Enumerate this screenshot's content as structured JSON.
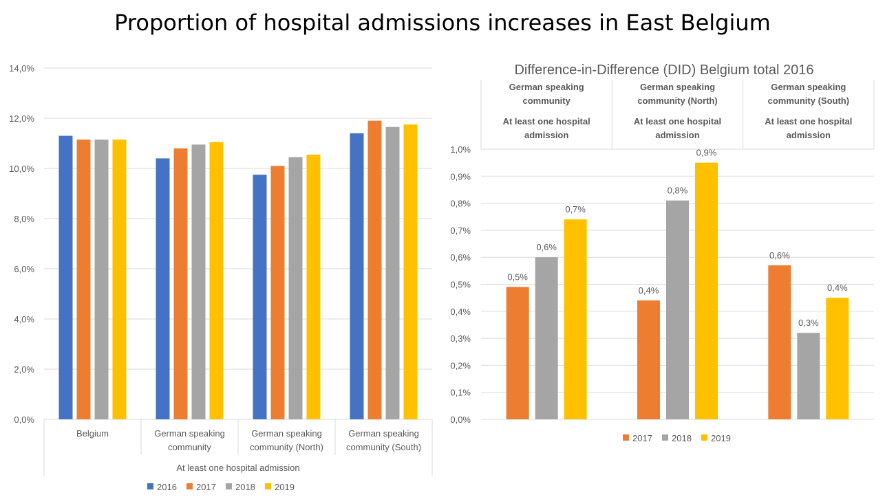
{
  "slide": {
    "title": "Proportion of hospital admissions increases in East Belgium"
  },
  "colors": {
    "2016": "#4472C4",
    "2017": "#ED7D31",
    "2018": "#A5A5A5",
    "2019": "#FFC000",
    "gridline": "#D9D9D9",
    "axis_text": "#595959"
  },
  "chart_data": [
    {
      "type": "bar",
      "title": "",
      "ylim": [
        0,
        14
      ],
      "yticks": [
        "0,0%",
        "2,0%",
        "4,0%",
        "6,0%",
        "8,0%",
        "10,0%",
        "12,0%",
        "14,0%"
      ],
      "categories": [
        [
          "Belgium"
        ],
        [
          "German speaking",
          "community"
        ],
        [
          "German speaking",
          "community (North)"
        ],
        [
          "German speaking",
          "community (South)"
        ]
      ],
      "group_label": "At least one hospital admission",
      "grid": true,
      "legend_position": "bottom",
      "series": [
        {
          "name": "2016",
          "values": [
            11.3,
            10.4,
            9.75,
            11.4
          ]
        },
        {
          "name": "2017",
          "values": [
            11.15,
            10.8,
            10.1,
            11.9
          ]
        },
        {
          "name": "2018",
          "values": [
            11.15,
            10.95,
            10.45,
            11.65
          ]
        },
        {
          "name": "2019",
          "values": [
            11.15,
            11.05,
            10.55,
            11.75
          ]
        }
      ]
    },
    {
      "type": "bar",
      "title": "Difference-in-Difference (DID) Belgium total 2016",
      "ylim": [
        0,
        1
      ],
      "yticks": [
        "0,0%",
        "0,1%",
        "0,2%",
        "0,3%",
        "0,4%",
        "0,5%",
        "0,6%",
        "0,7%",
        "0,8%",
        "0,9%",
        "1,0%"
      ],
      "categories": [
        {
          "name": [
            "German speaking",
            "community"
          ],
          "measure": [
            "At least one hospital",
            "admission"
          ]
        },
        {
          "name": [
            "German speaking",
            "community (North)"
          ],
          "measure": [
            "At least one hospital",
            "admission"
          ]
        },
        {
          "name": [
            "German speaking",
            "community (South)"
          ],
          "measure": [
            "At least one hospital",
            "admission"
          ]
        }
      ],
      "grid": true,
      "legend_position": "bottom",
      "series": [
        {
          "name": "2017",
          "values": [
            0.49,
            0.44,
            0.57
          ],
          "labels": [
            "0,5%",
            "0,4%",
            "0,6%"
          ]
        },
        {
          "name": "2018",
          "values": [
            0.6,
            0.81,
            0.32
          ],
          "labels": [
            "0,6%",
            "0,8%",
            "0,3%"
          ]
        },
        {
          "name": "2019",
          "values": [
            0.74,
            0.95,
            0.45
          ],
          "labels": [
            "0,7%",
            "0,9%",
            "0,4%"
          ]
        }
      ]
    }
  ]
}
